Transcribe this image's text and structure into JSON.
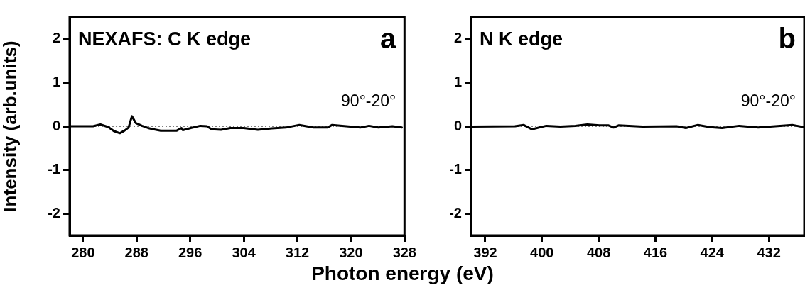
{
  "chart_data": [
    {
      "type": "line",
      "ylabel": "Intensity (arb.units)",
      "xlabel": "Photon energy (eV)",
      "annotations": [
        "NEXAFS: C K edge",
        "a",
        "90°-20°"
      ],
      "xlim": [
        278,
        328
      ],
      "xticks": [
        280,
        288,
        296,
        304,
        312,
        320,
        328
      ],
      "ylim": [
        -2.5,
        2.5
      ],
      "yticks": [
        -2,
        -1,
        0,
        1,
        2
      ],
      "marker": "none",
      "line_style": "solid",
      "ref_lines": [
        {
          "axis": "y",
          "value": 0,
          "line_style": "dotted",
          "color": "#000000"
        }
      ],
      "series": [
        {
          "color": "#000000",
          "x": [
            278.2,
            281.5,
            282.6,
            283.8,
            284.6,
            285.5,
            286.2,
            286.8,
            287.3,
            287.9,
            288.8,
            289.7,
            290.5,
            291.6,
            292.6,
            294.0,
            294.7,
            294.9,
            296.1,
            297.5,
            298.5,
            299.2,
            300.6,
            302.0,
            304.0,
            306.1,
            308.2,
            310.3,
            312.3,
            314.4,
            316.5,
            317.2,
            319.3,
            321.4,
            322.7,
            324.1,
            326.2,
            327.6
          ],
          "values": [
            0,
            0,
            0.04,
            -0.02,
            -0.11,
            -0.16,
            -0.1,
            -0.03,
            0.23,
            0.07,
            0.01,
            -0.04,
            -0.07,
            -0.1,
            -0.1,
            -0.1,
            -0.04,
            -0.09,
            -0.04,
            0.01,
            0,
            -0.07,
            -0.08,
            -0.04,
            -0.04,
            -0.08,
            -0.05,
            -0.03,
            0.03,
            -0.03,
            -0.03,
            0.03,
            0,
            -0.03,
            0.01,
            -0.03,
            0,
            -0.03
          ]
        }
      ]
    },
    {
      "type": "line",
      "annotations": [
        "N K edge",
        "b",
        "90°-20°"
      ],
      "xlim": [
        390,
        437
      ],
      "xticks": [
        392,
        400,
        408,
        416,
        424,
        432
      ],
      "ylim": [
        -2.5,
        2.5
      ],
      "yticks": [
        -2,
        -1,
        0,
        1,
        2
      ],
      "marker": "none",
      "line_style": "solid",
      "ref_lines": [
        {
          "axis": "y",
          "value": 0,
          "line_style": "dotted",
          "color": "#000000"
        }
      ],
      "series": [
        {
          "color": "#000000",
          "x": [
            390.1,
            396.2,
            397.4,
            398.6,
            400.6,
            402.6,
            404.7,
            406.4,
            408.1,
            409.4,
            410.1,
            410.8,
            414.2,
            419.0,
            420.3,
            422.0,
            423.7,
            425.4,
            427.8,
            430.5,
            432.9,
            435.3,
            436.9
          ],
          "values": [
            -0.01,
            0,
            0.03,
            -0.07,
            0.01,
            -0.01,
            0.01,
            0.04,
            0.02,
            0.02,
            -0.03,
            0.02,
            -0.01,
            0,
            -0.04,
            0.03,
            -0.02,
            -0.04,
            0.01,
            -0.03,
            0,
            0.03,
            -0.02
          ]
        }
      ]
    }
  ]
}
